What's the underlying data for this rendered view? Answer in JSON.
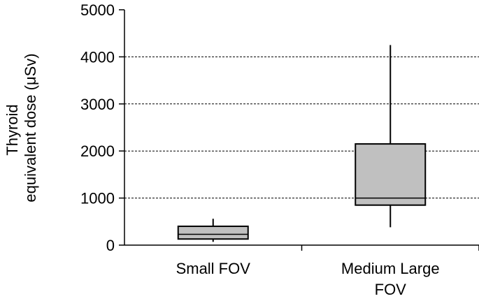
{
  "chart_data": {
    "type": "box",
    "ylabel_lines": [
      "Thyroid",
      "equivalent  dose (μSv)"
    ],
    "ylim": [
      0,
      5000
    ],
    "yticks": [
      0,
      1000,
      2000,
      3000,
      4000,
      5000
    ],
    "ytick_labels": [
      "0",
      "1000",
      "2000",
      "3000",
      "4000",
      "5000"
    ],
    "grid": "horizontal-dashed",
    "categories": [
      {
        "label_lines": [
          "Small FOV"
        ],
        "min": 70,
        "q1": 130,
        "median": 230,
        "q3": 400,
        "max": 560
      },
      {
        "label_lines": [
          "Medium Large",
          "FOV"
        ],
        "min": 380,
        "q1": 850,
        "median": 1000,
        "q3": 2150,
        "max": 4250
      }
    ],
    "box_fill": "#c0c0c0"
  }
}
